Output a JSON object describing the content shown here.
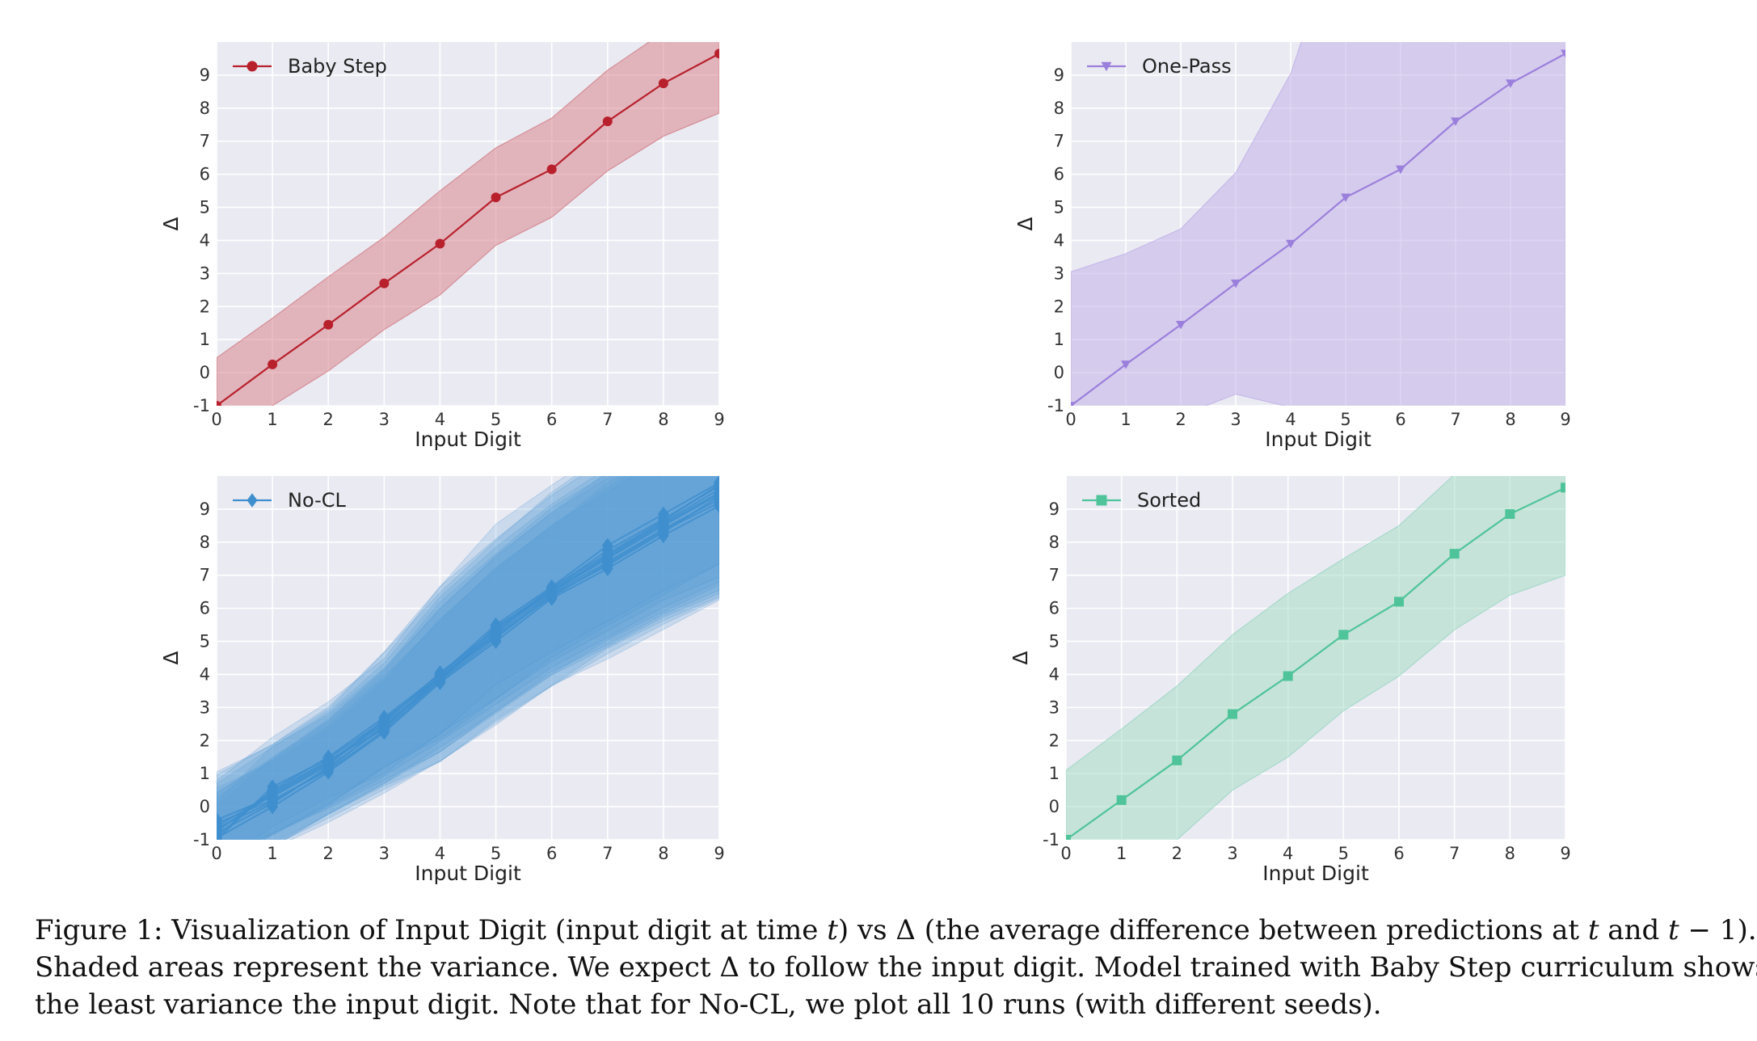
{
  "chart_data": [
    {
      "type": "line",
      "panel": "top-left",
      "xlabel": "Input Digit",
      "ylabel": "Δ",
      "xlim": [
        0,
        9
      ],
      "ylim": [
        -1,
        10
      ],
      "xticks": [
        "0",
        "1",
        "2",
        "3",
        "4",
        "5",
        "6",
        "7",
        "8",
        "9"
      ],
      "yticks": [
        "-1",
        "0",
        "1",
        "2",
        "3",
        "4",
        "5",
        "6",
        "7",
        "8",
        "9"
      ],
      "grid": true,
      "legend": "top-left",
      "color": "#b8202c",
      "fill_color": "#d9878f",
      "marker": "circle",
      "series": [
        {
          "name": "Baby Step",
          "x": [
            0,
            1,
            2,
            3,
            4,
            5,
            6,
            7,
            8,
            9
          ],
          "y": [
            -1.0,
            0.25,
            1.45,
            2.7,
            3.9,
            5.3,
            6.15,
            7.6,
            8.75,
            9.65
          ],
          "lower": [
            -2.2,
            -1.0,
            0.05,
            1.3,
            2.35,
            3.85,
            4.7,
            6.1,
            7.15,
            7.85
          ],
          "upper": [
            0.45,
            1.65,
            2.9,
            4.1,
            5.5,
            6.8,
            7.7,
            9.15,
            10.3,
            11.3
          ]
        }
      ]
    },
    {
      "type": "line",
      "panel": "top-right",
      "xlabel": "Input Digit",
      "ylabel": "Δ",
      "xlim": [
        0,
        9
      ],
      "ylim": [
        -1,
        10
      ],
      "xticks": [
        "0",
        "1",
        "2",
        "3",
        "4",
        "5",
        "6",
        "7",
        "8",
        "9"
      ],
      "yticks": [
        "-1",
        "0",
        "1",
        "2",
        "3",
        "4",
        "5",
        "6",
        "7",
        "8",
        "9"
      ],
      "grid": true,
      "legend": "top-left",
      "color": "#9b7fdc",
      "fill_color": "#c3b3ea",
      "marker": "triangle-down",
      "series": [
        {
          "name": "One-Pass",
          "x": [
            0,
            1,
            2,
            3,
            4,
            5,
            6,
            7,
            8,
            9
          ],
          "y": [
            -1.0,
            0.25,
            1.45,
            2.7,
            3.9,
            5.3,
            6.15,
            7.6,
            8.75,
            9.65
          ],
          "lower": [
            -3.0,
            -2.5,
            -1.3,
            -0.65,
            -1.05,
            -1.5,
            -1.5,
            -1.5,
            -1.5,
            -1.5
          ],
          "upper": [
            3.05,
            3.6,
            4.35,
            6.05,
            9.05,
            14.0,
            14.0,
            14.0,
            14.0,
            14.0
          ]
        }
      ]
    },
    {
      "type": "line",
      "panel": "bottom-left",
      "xlabel": "Input Digit",
      "ylabel": "Δ",
      "xlim": [
        0,
        9
      ],
      "ylim": [
        -1,
        10
      ],
      "xticks": [
        "0",
        "1",
        "2",
        "3",
        "4",
        "5",
        "6",
        "7",
        "8",
        "9"
      ],
      "yticks": [
        "-1",
        "0",
        "1",
        "2",
        "3",
        "4",
        "5",
        "6",
        "7",
        "8",
        "9"
      ],
      "grid": true,
      "legend": "top-left",
      "color": "#3f8fcf",
      "fill_color": "#5d9fd6",
      "marker": "diamond",
      "series": [
        {
          "name": "No-CL",
          "x": [
            0,
            1,
            2,
            3,
            4,
            5,
            6,
            7,
            8,
            9
          ],
          "runs": [
            [
              -0.9,
              0.5,
              1.5,
              2.7,
              4.0,
              5.5,
              6.65,
              7.9,
              8.85,
              9.8
            ],
            [
              -0.7,
              0.35,
              1.3,
              2.5,
              3.9,
              5.3,
              6.5,
              7.6,
              8.6,
              9.6
            ],
            [
              -0.5,
              0.2,
              1.1,
              2.3,
              3.8,
              5.1,
              6.4,
              7.3,
              8.3,
              9.4
            ],
            [
              -1.0,
              0.6,
              1.45,
              2.6,
              3.95,
              5.4,
              6.6,
              7.75,
              8.7,
              9.7
            ],
            [
              -0.8,
              0.1,
              1.2,
              2.4,
              3.85,
              5.2,
              6.45,
              7.4,
              8.4,
              9.3
            ],
            [
              -0.6,
              0.4,
              1.35,
              2.55,
              4.05,
              5.35,
              6.55,
              7.55,
              8.55,
              9.5
            ],
            [
              -0.95,
              0.0,
              1.05,
              2.25,
              3.75,
              5.0,
              6.3,
              7.2,
              8.2,
              9.1
            ],
            [
              -0.4,
              0.3,
              1.25,
              2.65,
              3.9,
              5.25,
              6.6,
              7.65,
              8.65,
              9.75
            ],
            [
              -0.75,
              0.45,
              1.4,
              2.35,
              3.95,
              5.15,
              6.35,
              7.35,
              8.35,
              9.2
            ],
            [
              -0.65,
              0.15,
              1.15,
              2.45,
              3.8,
              5.45,
              6.5,
              7.5,
              8.5,
              9.45
            ]
          ],
          "spread": [
            1.3,
            1.4,
            1.5,
            1.8,
            2.3,
            2.5,
            2.6,
            2.7,
            2.8,
            3.0
          ]
        }
      ]
    },
    {
      "type": "line",
      "panel": "bottom-right",
      "xlabel": "Input Digit",
      "ylabel": "Δ",
      "xlim": [
        0,
        9
      ],
      "ylim": [
        -1,
        10
      ],
      "xticks": [
        "0",
        "1",
        "2",
        "3",
        "4",
        "5",
        "6",
        "7",
        "8",
        "9"
      ],
      "yticks": [
        "-1",
        "0",
        "1",
        "2",
        "3",
        "4",
        "5",
        "6",
        "7",
        "8",
        "9"
      ],
      "grid": true,
      "legend": "top-left",
      "color": "#4fc49a",
      "fill_color": "#a8dcc6",
      "marker": "square",
      "series": [
        {
          "name": "Sorted",
          "x": [
            0,
            1,
            2,
            3,
            4,
            5,
            6,
            7,
            8,
            9
          ],
          "y": [
            -1.0,
            0.2,
            1.4,
            2.8,
            3.95,
            5.2,
            6.2,
            7.65,
            8.85,
            9.65
          ],
          "lower": [
            -3.0,
            -2.2,
            -1.0,
            0.5,
            1.5,
            2.9,
            3.95,
            5.35,
            6.4,
            7.0
          ],
          "upper": [
            1.1,
            2.35,
            3.65,
            5.2,
            6.45,
            7.5,
            8.5,
            10.05,
            11.5,
            12.5
          ]
        }
      ]
    }
  ],
  "caption": {
    "line1": "Figure 1: Visualization of Input Digit (input digit at time 𝑡) vs Δ (the average difference between predictions at 𝑡 and 𝑡 − 1).",
    "line2": "Shaded areas represent the variance. We expect Δ to follow the input digit. Model trained with Baby Step curriculum shows",
    "line3": "the least variance the input digit. Note that for No-CL, we plot all 10 runs (with different seeds)."
  }
}
